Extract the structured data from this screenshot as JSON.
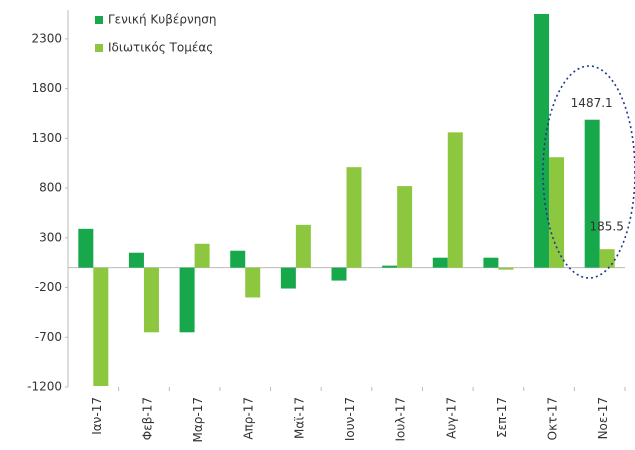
{
  "chart_data": {
    "type": "bar",
    "categories": [
      "Ιαν-17",
      "Φεβ-17",
      "Μαρ-17",
      "Απρ-17",
      "Μαϊ-17",
      "Ιουν-17",
      "Ιουλ-17",
      "Αυγ-17",
      "Σεπ-17",
      "Οκτ-17",
      "Νοε-17"
    ],
    "series": [
      {
        "name": "Γενική Κυβέρνηση",
        "color": "#17a84b",
        "values": [
          390,
          150,
          -650,
          170,
          -210,
          -130,
          20,
          100,
          100,
          2550,
          1487.1
        ]
      },
      {
        "name": "Ιδιωτικός Τομέας",
        "color": "#8dc63f",
        "values": [
          -1190,
          -650,
          240,
          -300,
          430,
          1010,
          820,
          1360,
          -20,
          1110,
          185.5
        ]
      }
    ],
    "ylim": [
      -1200,
      2550
    ],
    "yticks": [
      -1200,
      -700,
      -200,
      300,
      800,
      1300,
      1800,
      2300
    ],
    "legend": "top-left"
  }
}
